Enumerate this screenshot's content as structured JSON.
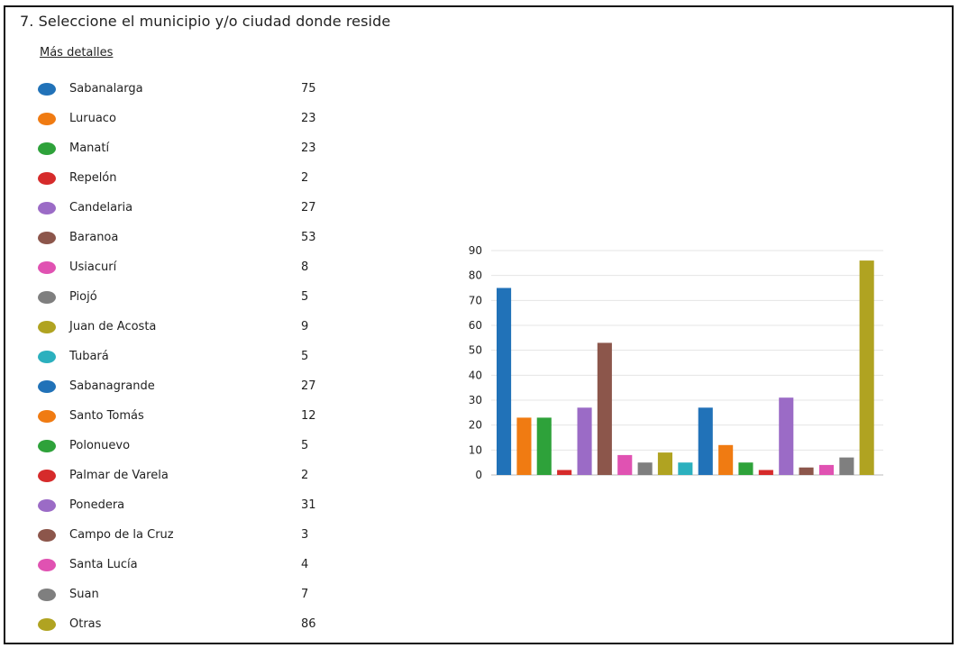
{
  "question": {
    "title": "7. Seleccione el municipio y/o ciudad donde reside",
    "more_details_label": "Más detalles"
  },
  "chart_data": {
    "type": "bar",
    "categories": [
      "Sabanalarga",
      "Luruaco",
      "Manatí",
      "Repelón",
      "Candelaria",
      "Baranoa",
      "Usiacurí",
      "Piojó",
      "Juan de Acosta",
      "Tubará",
      "Sabanagrande",
      "Santo Tomás",
      "Polonuevo",
      "Palmar de Varela",
      "Ponedera",
      "Campo de la Cruz",
      "Santa Lucía",
      "Suan",
      "Otras"
    ],
    "values": [
      75,
      23,
      23,
      2,
      27,
      53,
      8,
      5,
      9,
      5,
      27,
      12,
      5,
      2,
      31,
      3,
      4,
      7,
      86
    ],
    "colors": [
      "#2172b8",
      "#f07b12",
      "#2ea23a",
      "#d62b2b",
      "#9b6bc6",
      "#8c564b",
      "#e052b2",
      "#7f7f7f",
      "#b0a321",
      "#2bb0be",
      "#2172b8",
      "#f07b12",
      "#2ea23a",
      "#d62b2b",
      "#9b6bc6",
      "#8c564b",
      "#e052b2",
      "#7f7f7f",
      "#b0a321"
    ],
    "ylim": [
      0,
      90
    ],
    "yticks": [
      0,
      10,
      20,
      30,
      40,
      50,
      60,
      70,
      80,
      90
    ],
    "grid": true,
    "title": "",
    "xlabel": "",
    "ylabel": ""
  }
}
